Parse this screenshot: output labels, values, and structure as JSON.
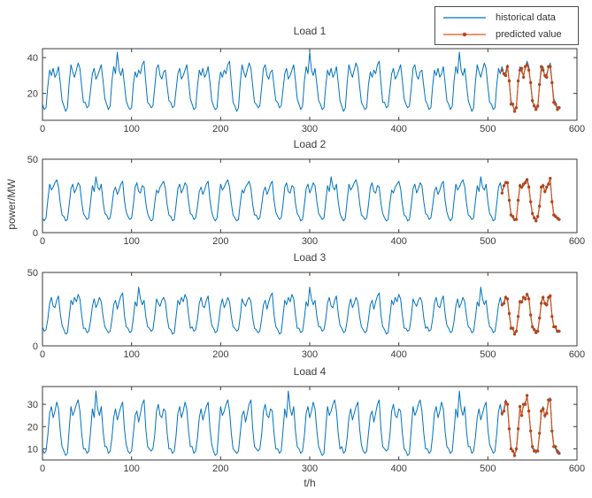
{
  "figure": {
    "background": "#ffffff",
    "axis_color": "#3a3a3a",
    "text_color": "#3b3b3b",
    "xlabel": "t/h",
    "ylabel": "power/MW",
    "legend": {
      "items": [
        {
          "label": "historical data",
          "color": "#0072BD",
          "has_marker": false
        },
        {
          "label": "predicted value",
          "color": "#D95319",
          "marker_color": "#b5451b",
          "has_marker": true
        }
      ]
    }
  },
  "chart_data": [
    {
      "type": "line",
      "title": "Load 1",
      "xlabel": "t/h",
      "ylabel": "power/MW",
      "xlim": [
        0,
        600
      ],
      "ylim": [
        5,
        45
      ],
      "xticks": [
        0,
        100,
        200,
        300,
        400,
        500,
        600
      ],
      "yticks": [
        20,
        40
      ],
      "grid": false,
      "legend_position": "top-right-above-axes",
      "series": [
        {
          "name": "historical data",
          "color": "#0072BD",
          "x_start": 0,
          "x_step": 2,
          "day_patterns": {
            "A": [
              14,
              11,
              12,
              24,
              33,
              30,
              34,
              29,
              31,
              35,
              26,
              16
            ],
            "B": [
              13,
              10,
              12,
              26,
              36,
              32,
              29,
              33,
              37,
              34,
              24,
              15
            ],
            "C": [
              15,
              12,
              13,
              22,
              31,
              34,
              28,
              30,
              33,
              36,
              27,
              17
            ],
            "D": [
              14,
              11,
              13,
              27,
              35,
              31,
              43,
              33,
              30,
              34,
              25,
              16
            ],
            "E": [
              13,
              11,
              12,
              25,
              32,
              29,
              33,
              31,
              36,
              38,
              26,
              15
            ],
            "F": [
              14,
              12,
              13,
              23,
              34,
              36,
              30,
              28,
              32,
              33,
              24,
              16
            ]
          },
          "day_order": "ABCDEFCAEBFCDABECFADB",
          "last_days": [
            [
              14,
              11,
              12,
              25,
              34,
              31,
              35,
              30,
              32,
              36,
              26,
              16
            ],
            [
              13,
              11,
              13,
              26,
              35,
              32,
              30,
              34,
              38,
              35,
              25,
              15
            ],
            [
              14,
              12,
              12,
              24,
              33,
              35,
              29,
              31,
              34,
              37,
              27,
              17
            ]
          ],
          "tail": [
            15,
            12,
            13
          ]
        },
        {
          "name": "predicted value",
          "color": "#D95319",
          "marker_color": "#b5451b",
          "marker": true,
          "x_start": 516,
          "x_step": 2,
          "values": [
            33,
            31,
            30,
            35,
            27,
            14,
            14,
            10,
            12,
            27,
            33,
            34,
            29,
            35,
            36,
            33,
            26,
            16,
            13,
            11,
            13,
            25,
            35,
            33,
            30,
            29,
            35,
            35,
            26,
            15,
            14,
            11,
            12
          ]
        }
      ]
    },
    {
      "type": "line",
      "title": "Load 2",
      "xlim": [
        0,
        600
      ],
      "ylim": [
        0,
        50
      ],
      "xticks": [
        0,
        100,
        200,
        300,
        400,
        500,
        600
      ],
      "yticks": [
        0,
        50
      ],
      "grid": false,
      "series": [
        {
          "name": "historical data",
          "color": "#0072BD",
          "x_start": 0,
          "x_step": 2,
          "day_patterns": {
            "A": [
              11,
              8,
              9,
              19,
              30,
              33,
              27,
              30,
              34,
              32,
              21,
              13
            ],
            "B": [
              10,
              8,
              10,
              22,
              33,
              29,
              31,
              34,
              36,
              31,
              20,
              12
            ],
            "C": [
              12,
              9,
              10,
              18,
              28,
              31,
              26,
              29,
              33,
              35,
              22,
              14
            ],
            "D": [
              11,
              9,
              10,
              21,
              32,
              28,
              38,
              31,
              29,
              33,
              21,
              13
            ],
            "E": [
              10,
              8,
              9,
              20,
              29,
              27,
              31,
              33,
              35,
              30,
              19,
              12
            ],
            "F": [
              11,
              9,
              10,
              19,
              31,
              34,
              28,
              27,
              32,
              31,
              20,
              13
            ]
          },
          "day_order": "BADCFEACBECFADBFEACBD",
          "last_days": [
            [
              11,
              8,
              9,
              20,
              31,
              34,
              28,
              31,
              35,
              33,
              21,
              13
            ],
            [
              10,
              8,
              10,
              21,
              33,
              30,
              32,
              35,
              37,
              32,
              20,
              12
            ],
            [
              11,
              9,
              10,
              19,
              30,
              33,
              27,
              30,
              34,
              36,
              22,
              13
            ]
          ],
          "tail": [
            12,
            9,
            10
          ]
        },
        {
          "name": "predicted value",
          "color": "#D95319",
          "marker_color": "#b5451b",
          "marker": true,
          "x_start": 516,
          "x_step": 2,
          "values": [
            27,
            32,
            34,
            34,
            22,
            12,
            11,
            9,
            9,
            22,
            32,
            31,
            33,
            34,
            36,
            31,
            21,
            13,
            10,
            8,
            11,
            18,
            31,
            32,
            28,
            31,
            33,
            37,
            21,
            12,
            11,
            10,
            9
          ]
        }
      ]
    },
    {
      "type": "line",
      "title": "Load 3",
      "xlim": [
        0,
        600
      ],
      "ylim": [
        0,
        50
      ],
      "xticks": [
        0,
        100,
        200,
        300,
        400,
        500,
        600
      ],
      "yticks": [
        0,
        50
      ],
      "grid": false,
      "series": [
        {
          "name": "historical data",
          "color": "#0072BD",
          "x_start": 0,
          "x_step": 2,
          "day_patterns": {
            "A": [
              12,
              9,
              10,
              17,
              27,
              32,
              26,
              29,
              33,
              30,
              20,
              13
            ],
            "B": [
              11,
              8,
              9,
              20,
              31,
              28,
              33,
              30,
              35,
              32,
              21,
              12
            ],
            "C": [
              13,
              10,
              11,
              18,
              29,
              33,
              27,
              26,
              31,
              34,
              22,
              14
            ],
            "D": [
              12,
              9,
              10,
              19,
              30,
              27,
              40,
              32,
              28,
              31,
              20,
              13
            ],
            "E": [
              11,
              9,
              10,
              18,
              28,
              31,
              25,
              30,
              34,
              36,
              21,
              13
            ],
            "F": [
              12,
              10,
              11,
              20,
              32,
              29,
              27,
              31,
              33,
              30,
              19,
              12
            ]
          },
          "day_order": "CBAEDFBCAFEBDCAEBFCAD",
          "last_days": [
            [
              12,
              9,
              10,
              18,
              28,
              33,
              27,
              30,
              34,
              31,
              21,
              13
            ],
            [
              11,
              9,
              10,
              19,
              31,
              29,
              34,
              31,
              36,
              33,
              20,
              12
            ],
            [
              12,
              10,
              11,
              18,
              30,
              34,
              28,
              27,
              32,
              35,
              21,
              14
            ]
          ],
          "tail": [
            12,
            9,
            11
          ]
        },
        {
          "name": "predicted value",
          "color": "#D95319",
          "marker_color": "#b5451b",
          "marker": true,
          "x_start": 516,
          "x_step": 2,
          "values": [
            28,
            29,
            33,
            32,
            22,
            12,
            12,
            8,
            10,
            20,
            30,
            30,
            33,
            32,
            35,
            32,
            21,
            13,
            11,
            9,
            10,
            19,
            29,
            33,
            29,
            28,
            33,
            34,
            20,
            13,
            13,
            10,
            10
          ]
        }
      ]
    },
    {
      "type": "line",
      "title": "Load 4",
      "xlim": [
        0,
        600
      ],
      "ylim": [
        5,
        38
      ],
      "xticks": [
        0,
        100,
        200,
        300,
        400,
        500,
        600
      ],
      "yticks": [
        10,
        20,
        30
      ],
      "grid": false,
      "series": [
        {
          "name": "historical data",
          "color": "#0072BD",
          "x_start": 0,
          "x_step": 2,
          "day_patterns": {
            "A": [
              10,
              8,
              9,
              16,
              26,
              29,
              24,
              27,
              31,
              28,
              18,
              11
            ],
            "B": [
              9,
              7,
              8,
              19,
              29,
              25,
              27,
              30,
              32,
              27,
              17,
              10
            ],
            "C": [
              11,
              8,
              9,
              15,
              24,
              28,
              23,
              26,
              29,
              31,
              19,
              12
            ],
            "D": [
              10,
              8,
              9,
              18,
              28,
              24,
              36,
              28,
              25,
              29,
              18,
              11
            ],
            "E": [
              9,
              8,
              9,
              17,
              25,
              27,
              22,
              26,
              30,
              32,
              19,
              11
            ],
            "F": [
              10,
              9,
              10,
              16,
              27,
              30,
              25,
              24,
              28,
              27,
              17,
              10
            ]
          },
          "day_order": "ABDCEFACBEFDABCEFBADC",
          "last_days": [
            [
              10,
              8,
              9,
              17,
              27,
              30,
              25,
              28,
              32,
              29,
              18,
              11
            ],
            [
              9,
              8,
              9,
              18,
              28,
              26,
              29,
              31,
              33,
              28,
              17,
              10
            ],
            [
              10,
              8,
              10,
              16,
              26,
              29,
              24,
              27,
              31,
              33,
              19,
              12
            ]
          ],
          "tail": [
            10,
            8,
            9
          ]
        },
        {
          "name": "predicted value",
          "color": "#D95319",
          "marker_color": "#b5451b",
          "marker": true,
          "x_start": 516,
          "x_step": 2,
          "values": [
            26,
            27,
            31,
            30,
            19,
            10,
            9,
            7,
            10,
            19,
            29,
            25,
            30,
            30,
            34,
            27,
            18,
            11,
            9,
            9,
            9,
            17,
            27,
            28,
            25,
            26,
            32,
            32,
            18,
            11,
            11,
            9,
            8
          ]
        }
      ]
    }
  ]
}
